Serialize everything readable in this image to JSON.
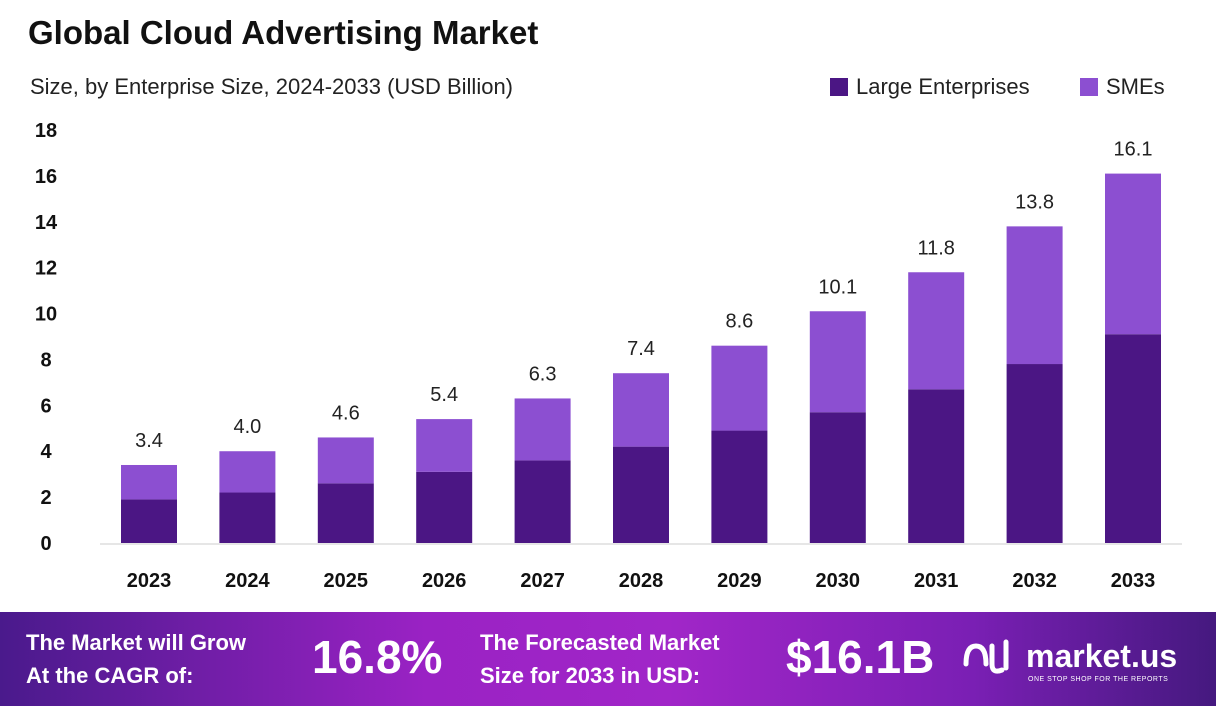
{
  "chart_data": {
    "type": "bar",
    "stacked": true,
    "title": "Global Cloud Advertising Market",
    "subtitle": "Size, by Enterprise Size, 2024-2033 (USD Billion)",
    "categories": [
      "2023",
      "2024",
      "2025",
      "2026",
      "2027",
      "2028",
      "2029",
      "2030",
      "2031",
      "2032",
      "2033"
    ],
    "series": [
      {
        "name": "Large Enterprises",
        "color": "#4b1684",
        "values": [
          1.9,
          2.2,
          2.6,
          3.1,
          3.6,
          4.2,
          4.9,
          5.7,
          6.7,
          7.8,
          9.1
        ]
      },
      {
        "name": "SMEs",
        "color": "#8c4fd1",
        "values": [
          1.5,
          1.8,
          2.0,
          2.3,
          2.7,
          3.2,
          3.7,
          4.4,
          5.1,
          6.0,
          7.0
        ]
      }
    ],
    "totals": [
      "3.4",
      "4.0",
      "4.6",
      "5.4",
      "6.3",
      "7.4",
      "8.6",
      "10.1",
      "11.8",
      "13.8",
      "16.1"
    ],
    "yticks": [
      0,
      2,
      4,
      6,
      8,
      10,
      12,
      14,
      16,
      18
    ],
    "ylim": [
      0,
      18
    ],
    "grid": false,
    "legend_position": "top-right"
  },
  "footer": {
    "cagr_label_1": "The Market will Grow",
    "cagr_label_2": "At the CAGR of:",
    "cagr_value": "16.8%",
    "forecast_label_1": "The Forecasted Market",
    "forecast_label_2": "Size for 2033 in USD:",
    "forecast_value": "$16.1B",
    "logo_text": "market.us",
    "logo_tagline": "ONE STOP SHOP FOR THE REPORTS"
  }
}
